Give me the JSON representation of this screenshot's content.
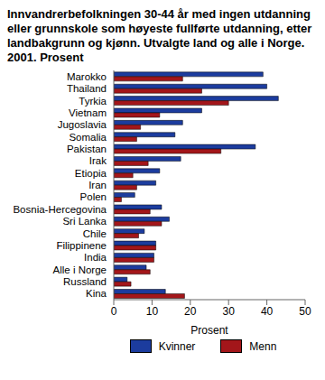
{
  "chart_data": {
    "type": "bar",
    "orientation": "horizontal",
    "title": "Innvandrerbefolkningen 30-44 år med ingen utdanning eller grunnskole som høyeste fullførte utdanning, etter landbakgrunn og kjønn. Utvalgte land og alle i Norge. 2001. Prosent",
    "x_label": "Prosent",
    "categories": [
      "Marokko",
      "Thailand",
      "Tyrkia",
      "Vietnam",
      "Jugoslavia",
      "Somalia",
      "Pakistan",
      "Irak",
      "Etiopia",
      "Iran",
      "Polen",
      "Bosnia-Hercegovina",
      "Sri Lanka",
      "Chile",
      "Filippinene",
      "India",
      "Alle i Norge",
      "Russland",
      "Kina"
    ],
    "series": [
      {
        "name": "Kvinner",
        "color": "#1c3c9e",
        "values": [
          39,
          40,
          43,
          23,
          18,
          16,
          37,
          17.5,
          12,
          11,
          5.5,
          12.5,
          14.5,
          8,
          11,
          10.5,
          8.5,
          3.5,
          13.5
        ]
      },
      {
        "name": "Menn",
        "color": "#a3161a",
        "values": [
          18,
          23,
          30,
          12,
          7,
          6,
          28,
          9,
          5,
          6,
          2,
          9.5,
          12.5,
          6.5,
          11,
          10.5,
          9.5,
          4.5,
          18.5
        ]
      }
    ],
    "xlim": [
      0,
      50
    ],
    "xticks": [
      0,
      10,
      20,
      30,
      40,
      50
    ],
    "grid": false,
    "legend": "bottom"
  }
}
